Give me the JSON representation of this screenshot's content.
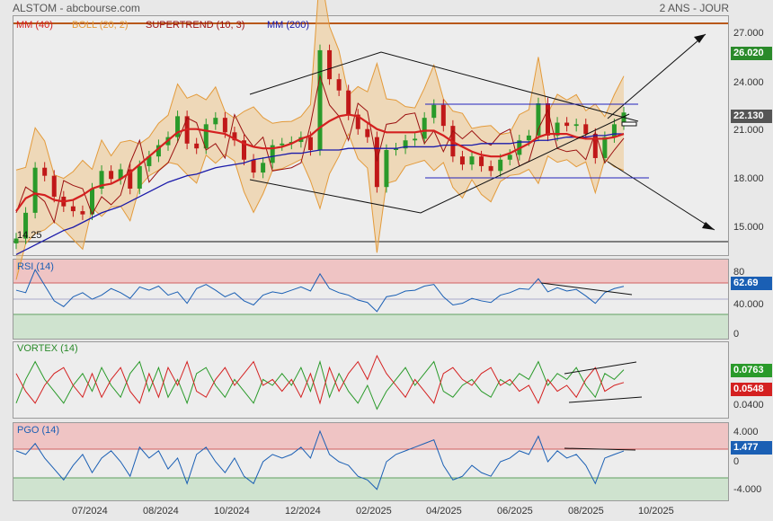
{
  "header": {
    "title": "ALSTOM - abcbourse.com",
    "period": "2 ANS - JOUR"
  },
  "legend": {
    "mm40": "MM (40)",
    "boll": "BOLL (20, 2)",
    "supertrend": "SUPERTREND (10, 3)",
    "mm200": "MM (200)",
    "colors": {
      "mm40": "#d42020",
      "boll": "#e39a3a",
      "supertrend": "#9b1010",
      "mm200": "#1a1aaa"
    }
  },
  "chart_data": [
    {
      "type": "candlestick",
      "panel": "price",
      "yticks": [
        "27.000",
        "24.000",
        "21.000",
        "18.000",
        "15.000"
      ],
      "ylim": [
        13.2,
        28.0
      ],
      "last_price": "22.130",
      "highlight_level": "26.020",
      "low_annotation": "14.25",
      "x_dates": [
        "07/2024",
        "08/2024",
        "10/2024",
        "12/2024",
        "02/2025",
        "04/2025",
        "06/2025",
        "08/2025",
        "10/2025"
      ],
      "close_series": [
        14.3,
        15.9,
        18.7,
        18.2,
        16.9,
        16.3,
        16.0,
        15.8,
        17.4,
        18.5,
        18.0,
        18.6,
        17.4,
        18.8,
        19.4,
        20.1,
        20.6,
        21.9,
        20.2,
        19.9,
        21.4,
        21.8,
        20.9,
        20.4,
        19.2,
        18.4,
        19.0,
        20.1,
        20.2,
        20.3,
        20.6,
        19.8,
        26.0,
        24.2,
        23.5,
        22.0,
        21.1,
        20.6,
        17.5,
        19.8,
        19.9,
        20.4,
        20.5,
        21.8,
        22.6,
        21.3,
        19.4,
        18.9,
        19.4,
        18.8,
        18.5,
        19.2,
        19.5,
        20.4,
        20.7,
        22.7,
        20.7,
        21.5,
        21.3,
        21.4,
        20.8,
        19.3,
        20.6,
        21.4,
        22.13
      ],
      "mm40": [
        16.0,
        16.8,
        17.1,
        17.0,
        16.7,
        16.6,
        16.7,
        17.0,
        17.4,
        17.6,
        17.7,
        18.0,
        18.4,
        18.9,
        19.4,
        19.9,
        20.4,
        20.9,
        21.1,
        21.1,
        21.0,
        20.9,
        20.8,
        20.5,
        20.2,
        20.0,
        19.9,
        19.9,
        20.0,
        20.2,
        20.5,
        20.7,
        21.2,
        21.6,
        21.9,
        22.0,
        21.9,
        21.5,
        21.1,
        20.9,
        20.9,
        20.9,
        20.9,
        21.0,
        21.0,
        20.7,
        20.3,
        20.0,
        19.7,
        19.5,
        19.4,
        19.4,
        19.6,
        19.9,
        20.2,
        20.6,
        20.8,
        20.8,
        20.8,
        20.6,
        20.5,
        20.5,
        20.5,
        20.6,
        20.8
      ],
      "mm200": [
        13.3,
        13.6,
        13.9,
        14.2,
        14.5,
        14.8,
        15.0,
        15.3,
        15.6,
        15.9,
        16.1,
        16.3,
        16.6,
        16.9,
        17.2,
        17.5,
        17.8,
        18.0,
        18.2,
        18.3,
        18.5,
        18.7,
        18.8,
        18.9,
        19.0,
        19.2,
        19.3,
        19.4,
        19.5,
        19.6,
        19.6,
        19.7,
        19.8,
        19.8,
        19.8,
        19.9,
        19.9,
        19.9,
        19.9,
        19.9,
        19.9,
        20.0,
        20.0,
        20.0,
        20.0,
        20.1,
        20.1,
        20.1,
        20.1,
        20.2,
        20.2,
        20.2,
        20.2,
        20.3,
        20.3,
        20.4,
        20.4,
        20.5,
        20.6,
        20.6,
        20.6,
        20.7,
        20.7,
        20.8,
        20.8
      ]
    },
    {
      "type": "line",
      "panel": "rsi",
      "name": "RSI (14)",
      "yticks": [
        "80",
        "40.000",
        "0"
      ],
      "ylim": [
        0,
        100
      ],
      "last_value": "62.69",
      "values": [
        58,
        55,
        83,
        64,
        45,
        38,
        50,
        55,
        47,
        52,
        60,
        55,
        48,
        62,
        58,
        63,
        52,
        56,
        42,
        60,
        65,
        58,
        50,
        55,
        45,
        40,
        52,
        56,
        54,
        58,
        62,
        57,
        78,
        60,
        55,
        52,
        46,
        43,
        32,
        50,
        52,
        57,
        58,
        63,
        65,
        50,
        40,
        42,
        48,
        45,
        43,
        52,
        55,
        60,
        59,
        72,
        56,
        61,
        57,
        59,
        51,
        42,
        55,
        60,
        62.69
      ]
    },
    {
      "type": "line",
      "panel": "vortex",
      "name": "VORTEX (14)",
      "yticks": [
        "0.0400"
      ],
      "last_values": [
        "0.0763",
        "0.0548"
      ],
      "series": [
        {
          "color": "#2a9a2a",
          "values": [
            0.02,
            0.06,
            0.09,
            0.06,
            0.04,
            0.02,
            0.05,
            0.07,
            0.04,
            0.08,
            0.05,
            0.03,
            0.07,
            0.09,
            0.04,
            0.08,
            0.03,
            0.06,
            0.02,
            0.07,
            0.08,
            0.05,
            0.03,
            0.06,
            0.04,
            0.02,
            0.06,
            0.05,
            0.07,
            0.05,
            0.08,
            0.04,
            0.09,
            0.03,
            0.07,
            0.04,
            0.02,
            0.05,
            0.01,
            0.04,
            0.06,
            0.08,
            0.05,
            0.07,
            0.09,
            0.04,
            0.03,
            0.05,
            0.06,
            0.04,
            0.03,
            0.06,
            0.05,
            0.07,
            0.06,
            0.09,
            0.05,
            0.07,
            0.06,
            0.08,
            0.05,
            0.03,
            0.07,
            0.06,
            0.0763
          ]
        },
        {
          "color": "#d42020",
          "values": [
            0.07,
            0.04,
            0.02,
            0.05,
            0.07,
            0.08,
            0.05,
            0.03,
            0.07,
            0.03,
            0.06,
            0.08,
            0.04,
            0.02,
            0.07,
            0.03,
            0.08,
            0.05,
            0.09,
            0.04,
            0.03,
            0.06,
            0.08,
            0.05,
            0.07,
            0.09,
            0.05,
            0.06,
            0.04,
            0.06,
            0.03,
            0.07,
            0.02,
            0.08,
            0.04,
            0.07,
            0.09,
            0.06,
            0.1,
            0.07,
            0.05,
            0.03,
            0.06,
            0.04,
            0.02,
            0.07,
            0.08,
            0.06,
            0.05,
            0.07,
            0.08,
            0.05,
            0.06,
            0.04,
            0.05,
            0.02,
            0.06,
            0.04,
            0.05,
            0.03,
            0.06,
            0.08,
            0.04,
            0.05,
            0.0548
          ]
        }
      ]
    },
    {
      "type": "line",
      "panel": "pgo",
      "name": "PGO (14)",
      "yticks": [
        "4.000",
        "0",
        "-4.000"
      ],
      "ylim": [
        -5.5,
        5.5
      ],
      "last_value": "1.477",
      "values": [
        1.5,
        1.0,
        2.5,
        0.5,
        -1.0,
        -2.5,
        -0.5,
        1.0,
        -1.5,
        0.5,
        1.5,
        0.0,
        -2.0,
        2.0,
        0.5,
        1.5,
        -1.0,
        0.5,
        -3.0,
        1.0,
        2.0,
        0.0,
        -1.5,
        0.5,
        -2.0,
        -3.0,
        0.0,
        1.0,
        0.5,
        1.0,
        2.0,
        0.5,
        4.2,
        1.0,
        0.0,
        -0.5,
        -2.0,
        -2.5,
        -3.8,
        0.0,
        1.0,
        1.5,
        2.0,
        2.5,
        3.0,
        -0.5,
        -2.5,
        -2.0,
        -0.5,
        -1.5,
        -2.0,
        0.0,
        0.5,
        1.5,
        1.0,
        3.5,
        0.0,
        1.5,
        0.5,
        1.0,
        -0.5,
        -3.0,
        0.5,
        1.0,
        1.477
      ]
    }
  ]
}
